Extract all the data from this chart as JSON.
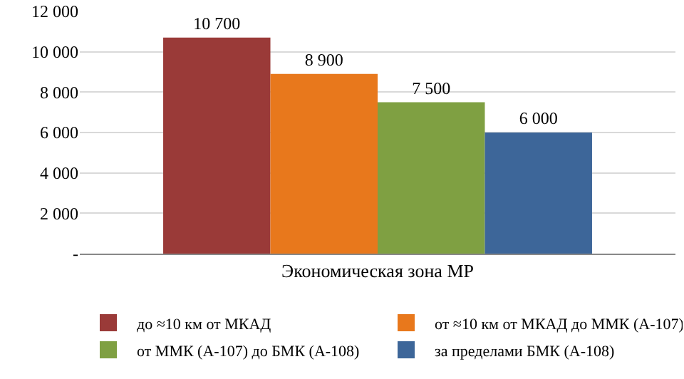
{
  "chart_data": {
    "type": "bar",
    "categories": [
      "Экономическая зона МР"
    ],
    "series": [
      {
        "name": "до ≈10 км от МКАД",
        "color": "#9a3a38",
        "values": [
          10700
        ],
        "value_labels": [
          "10 700"
        ]
      },
      {
        "name": "от ≈10 км от МКАД до ММК (А-107)",
        "color": "#e8781c",
        "values": [
          8900
        ],
        "value_labels": [
          "8 900"
        ]
      },
      {
        "name": "от ММК (А-107) до БМК (А-108)",
        "color": "#7fa042",
        "values": [
          7500
        ],
        "value_labels": [
          "7 500"
        ]
      },
      {
        "name": "за пределами БМК (А-108)",
        "color": "#3d6699",
        "values": [
          6000
        ],
        "value_labels": [
          "6 000"
        ]
      }
    ],
    "ylim": [
      0,
      12000
    ],
    "yticks": [
      {
        "value": 0,
        "label": "-"
      },
      {
        "value": 2000,
        "label": "2 000"
      },
      {
        "value": 4000,
        "label": "4 000"
      },
      {
        "value": 6000,
        "label": "6 000"
      },
      {
        "value": 8000,
        "label": "8 000"
      },
      {
        "value": 10000,
        "label": "10 000"
      },
      {
        "value": 12000,
        "label": "12 000"
      }
    ],
    "grid": "y",
    "legend": "bottom"
  }
}
